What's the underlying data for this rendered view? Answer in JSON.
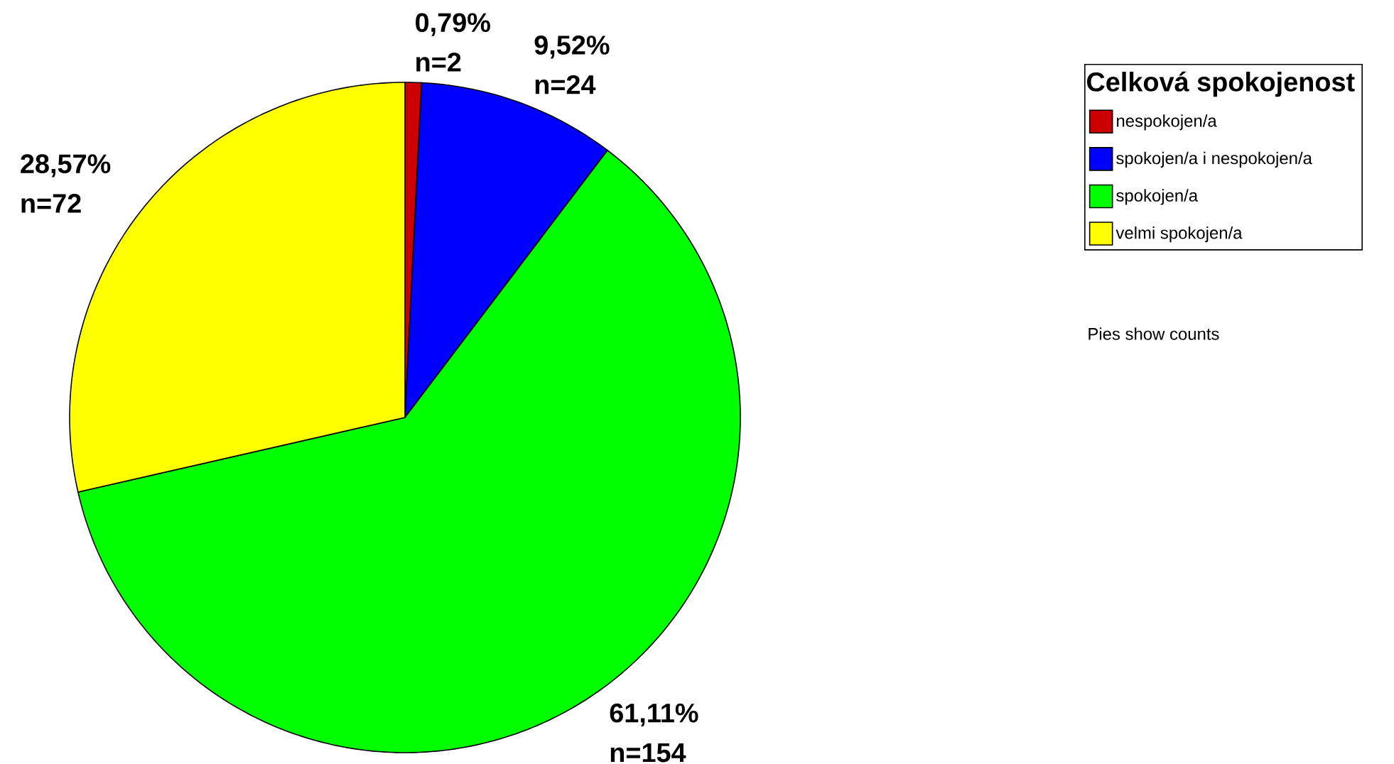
{
  "chart_data": {
    "type": "pie",
    "categories": [
      "nespokojen/a",
      "spokojen/a i nespokojen/a",
      "spokojen/a",
      "velmi spokojen/a"
    ],
    "values": [
      2,
      24,
      154,
      72
    ],
    "colors": [
      "#cc0000",
      "#0000ff",
      "#00ff00",
      "#ffff00"
    ],
    "value_labels": [
      "0,79% n=2",
      "9,52% n=24",
      "61,11% n=154",
      "28,57% n=72"
    ],
    "legend_title": "Celková spokojenost",
    "legend": "top right",
    "annotations": [
      "Pies show counts"
    ]
  }
}
